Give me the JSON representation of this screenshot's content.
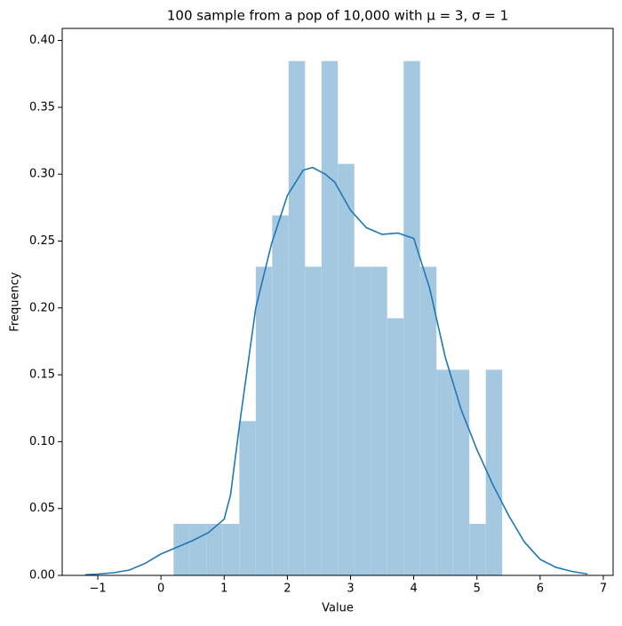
{
  "chart_data": {
    "type": "histogram",
    "title": "100 sample from a pop of 10,000 with μ = 3, σ = 1",
    "xlabel": "Value",
    "ylabel": "Frequency",
    "bins": [
      0.2,
      0.46,
      0.72,
      0.98,
      1.24,
      1.5,
      1.76,
      2.02,
      2.28,
      2.54,
      2.8,
      3.06,
      3.32,
      3.58,
      3.84,
      4.1,
      4.36,
      4.62,
      4.88,
      5.14,
      5.4
    ],
    "values": [
      0.0385,
      0.0385,
      0.0385,
      0.0385,
      0.1154,
      0.2308,
      0.2692,
      0.3846,
      0.2308,
      0.3846,
      0.3077,
      0.2308,
      0.2308,
      0.1923,
      0.3846,
      0.2308,
      0.1538,
      0.1538,
      0.0385,
      0.1538
    ],
    "color": "#a5c8e1",
    "kde": {
      "color": "#1f77b4",
      "x": [
        -1.2,
        -1,
        -0.75,
        -0.5,
        -0.25,
        0,
        0.25,
        0.5,
        0.75,
        1,
        1.1,
        1.25,
        1.5,
        1.75,
        2,
        2.25,
        2.4,
        2.6,
        2.75,
        3,
        3.25,
        3.5,
        3.75,
        4,
        4.25,
        4.5,
        4.75,
        5,
        5.25,
        5.5,
        5.75,
        6,
        6.25,
        6.5,
        6.75
      ],
      "y": [
        0.0005,
        0.001,
        0.002,
        0.004,
        0.009,
        0.016,
        0.021,
        0.026,
        0.032,
        0.042,
        0.06,
        0.115,
        0.2,
        0.248,
        0.284,
        0.303,
        0.305,
        0.3,
        0.294,
        0.273,
        0.26,
        0.255,
        0.256,
        0.252,
        0.215,
        0.163,
        0.124,
        0.094,
        0.068,
        0.045,
        0.025,
        0.012,
        0.006,
        0.003,
        0.001
      ]
    },
    "xlim": [
      -1.563,
      7.155
    ],
    "ylim": [
      0,
      0.409
    ],
    "xticks": [
      {
        "value": -1,
        "label": "−1"
      },
      0,
      1,
      2,
      3,
      4,
      5,
      6,
      7
    ],
    "yticks": [
      {
        "value": 0,
        "label": "0.00"
      },
      0.05,
      {
        "value": 0.1,
        "label": "0.10"
      },
      0.15,
      {
        "value": 0.2,
        "label": "0.20"
      },
      0.25,
      {
        "value": 0.3,
        "label": "0.30"
      },
      0.35,
      {
        "value": 0.4,
        "label": "0.40"
      }
    ]
  }
}
